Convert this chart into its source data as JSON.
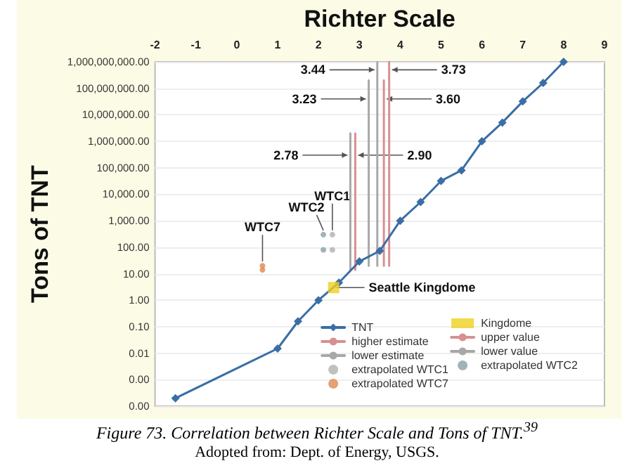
{
  "chart_data": {
    "type": "line",
    "xlabel": "Richter Scale",
    "ylabel": "Tons of TNT",
    "log": "y",
    "grid": "y",
    "legend": "bottom right",
    "xlim": [
      -2,
      9
    ],
    "xticks": [
      -2,
      -1,
      0,
      1,
      2,
      3,
      4,
      5,
      6,
      7,
      8,
      9
    ],
    "ylim": [
      0.0001,
      1000000000
    ],
    "yticks": [
      {
        "value": 0.0001,
        "label": "0.00"
      },
      {
        "value": 0.001,
        "label": "0.00"
      },
      {
        "value": 0.01,
        "label": "0.01"
      },
      {
        "value": 0.1,
        "label": "0.10"
      },
      {
        "value": 1,
        "label": "1.00"
      },
      {
        "value": 10,
        "label": "10.00"
      },
      {
        "value": 100,
        "label": "100.00"
      },
      {
        "value": 1000,
        "label": "1,000.00"
      },
      {
        "value": 10000,
        "label": "10,000.00"
      },
      {
        "value": 100000,
        "label": "100,000.00"
      },
      {
        "value": 1000000,
        "label": "1,000,000.00"
      },
      {
        "value": 10000000,
        "label": "10,000,000.00"
      },
      {
        "value": 100000000,
        "label": "100,000,000.00"
      },
      {
        "value": 1000000000,
        "label": "1,000,000,000.00"
      }
    ],
    "series": [
      {
        "name": "TNT",
        "marker": "diamond",
        "color": "#3a6ea5",
        "x": [
          -1.5,
          1,
          1.5,
          2,
          2.5,
          3,
          3.5,
          4,
          4.5,
          5,
          5.5,
          6,
          6.5,
          7,
          7.5,
          8
        ],
        "values": [
          0.0002,
          0.015,
          0.16,
          1,
          4.6,
          29,
          73,
          1000,
          5100,
          32000,
          80000,
          1000000,
          5100000,
          32000000,
          160000000,
          1000000000
        ]
      },
      {
        "name": "higher estimate",
        "marker": "none",
        "color": "#d89090",
        "x": [
          3.73,
          3.73,
          null,
          3.6,
          3.6
        ],
        "values": [
          20,
          1000000000,
          null,
          20,
          200000000
        ]
      },
      {
        "name": "lower estimate",
        "marker": "none",
        "color": "#a8a8a8",
        "x": [
          3.44,
          3.44,
          null,
          3.23,
          3.23
        ],
        "values": [
          20,
          1000000000,
          null,
          20,
          200000000
        ]
      },
      {
        "name": "extrapolated WTC1",
        "type": "scatter",
        "marker": "circle",
        "color": "#b0b0b0",
        "x": [
          2.34,
          2.34
        ],
        "values": [
          300,
          80
        ]
      },
      {
        "name": "extrapolated WTC7",
        "type": "scatter",
        "marker": "circle",
        "color": "#e08850",
        "x": [
          0.63,
          0.63
        ],
        "values": [
          20,
          14
        ]
      },
      {
        "name": "Kingdome",
        "type": "scatter",
        "marker": "square",
        "color": "#f0d020",
        "x": [
          2.37
        ],
        "values": [
          3
        ]
      },
      {
        "name": "upper value",
        "marker": "none",
        "color": "#d89090",
        "x": [
          2.9,
          2.9
        ],
        "values": [
          14,
          2000000
        ]
      },
      {
        "name": "lower value",
        "marker": "none",
        "color": "#a8a8a8",
        "x": [
          2.78,
          2.78
        ],
        "values": [
          14,
          2000000
        ]
      },
      {
        "name": "extrapolated WTC2",
        "type": "scatter",
        "marker": "circle",
        "color": "#8aa0a8",
        "x": [
          2.12,
          2.12
        ],
        "values": [
          300,
          80
        ]
      }
    ],
    "annotations": [
      {
        "text": "3.44",
        "x": 3.44,
        "y": 500000000
      },
      {
        "text": "3.73",
        "x": 3.73,
        "y": 500000000
      },
      {
        "text": "3.23",
        "x": 3.23,
        "y": 40000000
      },
      {
        "text": "3.60",
        "x": 3.6,
        "y": 40000000
      },
      {
        "text": "2.78",
        "x": 2.78,
        "y": 300000
      },
      {
        "text": "2.90",
        "x": 2.9,
        "y": 300000
      },
      {
        "text": "WTC1",
        "x": 2.34,
        "y": 300
      },
      {
        "text": "WTC2",
        "x": 2.12,
        "y": 300
      },
      {
        "text": "WTC7",
        "x": 0.63,
        "y": 20
      },
      {
        "text": "Seattle Kingdome",
        "x": 2.37,
        "y": 3
      },
      "Figure 73. Correlation between Richter Scale and Tons of TNT.$^{39}$",
      "Adopted from: Dept. of Energy, USGS."
    ]
  }
}
